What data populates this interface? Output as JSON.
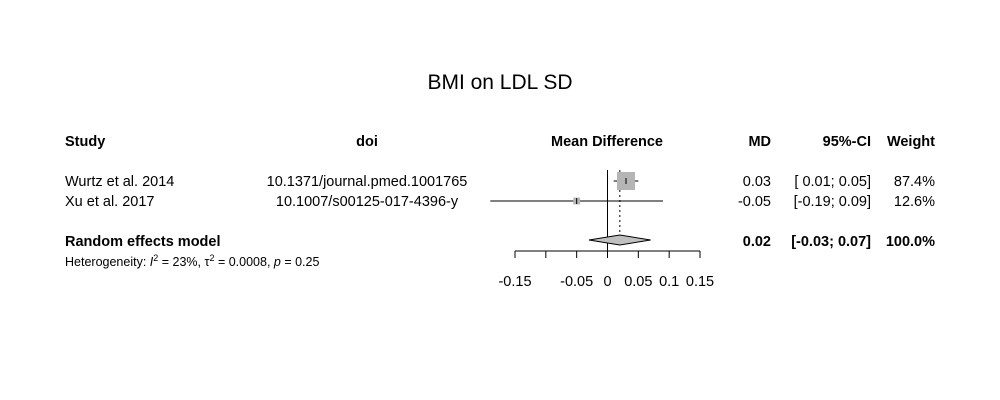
{
  "chart_data": {
    "type": "forest",
    "title": "BMI on LDL SD",
    "columns": {
      "study": "Study",
      "doi": "doi",
      "plot": "Mean Difference",
      "md": "MD",
      "ci": "95%-CI",
      "weight": "Weight"
    },
    "studies": [
      {
        "study": "Wurtz et al. 2014",
        "doi": "10.1371/journal.pmed.1001765",
        "md": 0.03,
        "lower": 0.01,
        "upper": 0.05,
        "md_text": "0.03",
        "ci_text": "[ 0.01; 0.05]",
        "weight_text": "87.4%",
        "weight": 87.4
      },
      {
        "study": "Xu et al. 2017",
        "doi": "10.1007/s00125-017-4396-y",
        "md": -0.05,
        "lower": -0.19,
        "upper": 0.09,
        "md_text": "-0.05",
        "ci_text": "[-0.19; 0.09]",
        "weight_text": "12.6%",
        "weight": 12.6
      }
    ],
    "pooled": {
      "label": "Random effects model",
      "md": 0.02,
      "lower": -0.03,
      "upper": 0.07,
      "md_text": "0.02",
      "ci_text": "[-0.03; 0.07]",
      "weight_text": "100.0%"
    },
    "heterogeneity": {
      "prefix": "Heterogeneity: ",
      "i2_symbol": "I",
      "i2_value": " = 23%, ",
      "tau2_symbol": "τ",
      "tau2_value": " = 0.0008, ",
      "p_symbol": "p",
      "p_value": " = 0.25"
    },
    "axis": {
      "xlim": [
        -0.15,
        0.15
      ],
      "ticks": [
        -0.15,
        -0.1,
        -0.05,
        0,
        0.05,
        0.1,
        0.15
      ],
      "tick_labels": [
        "-0.15",
        "",
        "-0.05",
        "0",
        "0.05",
        "0.1",
        "0.15"
      ],
      "null_value": 0
    },
    "colors": {
      "square": "#b5b5b5",
      "diamond": "#c0c0c0",
      "line": "#000000"
    }
  }
}
